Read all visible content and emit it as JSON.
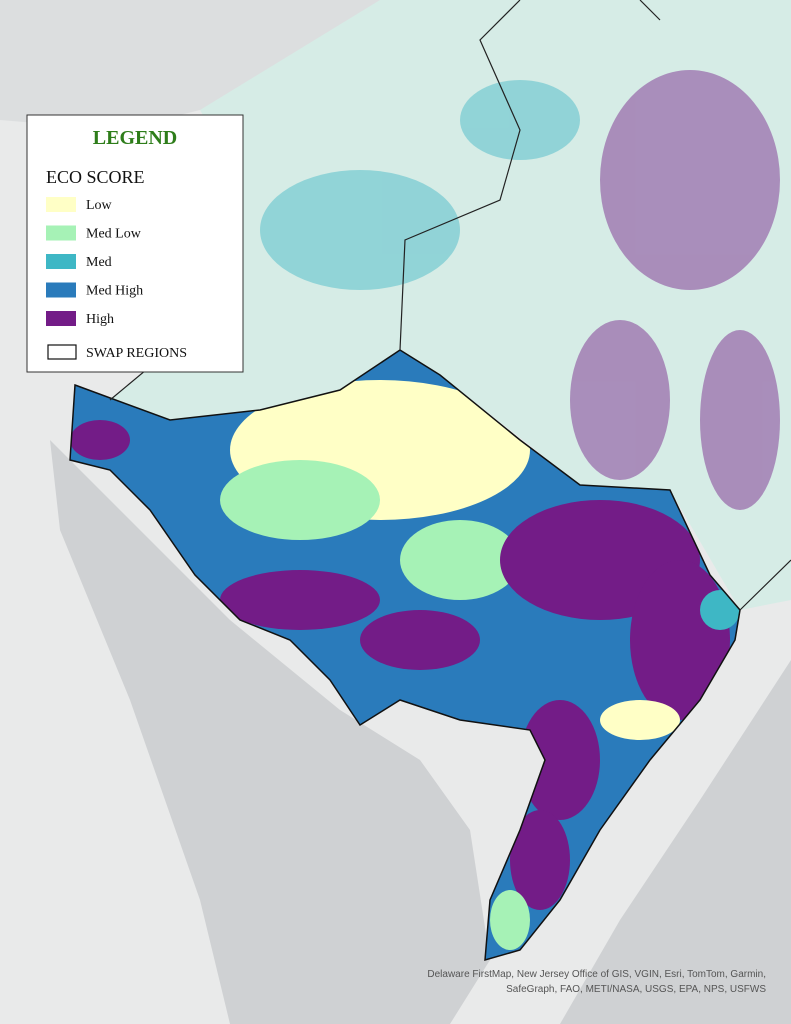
{
  "legend": {
    "title": "LEGEND",
    "subtitle": "ECO SCORE",
    "items": [
      {
        "label": "Low",
        "color": "#ffffc6"
      },
      {
        "label": "Med Low",
        "color": "#a6f2b6"
      },
      {
        "label": "Med",
        "color": "#3eb7c5"
      },
      {
        "label": "Med High",
        "color": "#2a7bbb"
      },
      {
        "label": "High",
        "color": "#731c87"
      }
    ],
    "boundary_label": "SWAP REGIONS"
  },
  "attribution": [
    "Delaware FirstMap, New Jersey Office of GIS, VGIN, Esri, TomTom, Garmin,",
    "SafeGraph, FAO, METI/NASA, USGS, EPA, NPS, USFWS"
  ]
}
